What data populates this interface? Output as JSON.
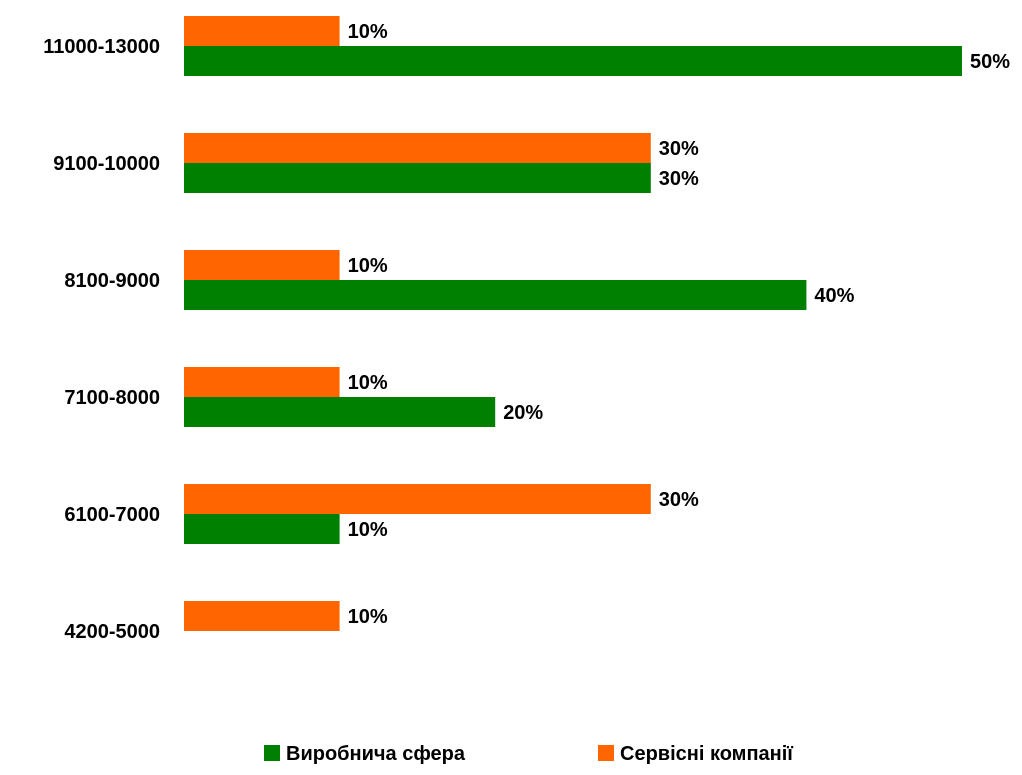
{
  "chart_data": {
    "type": "bar",
    "orientation": "horizontal",
    "categories": [
      "11000-13000",
      "9100-10000",
      "8100-9000",
      "7100-8000",
      "6100-7000",
      "4200-5000"
    ],
    "series": [
      {
        "name": "Сервісні компанії",
        "color": "#ff6600",
        "values": [
          10,
          30,
          10,
          10,
          30,
          10
        ],
        "labels": [
          "10%",
          "30%",
          "10%",
          "10%",
          "30%",
          "10%"
        ]
      },
      {
        "name": "Виробнича сфера",
        "color": "#008000",
        "values": [
          50,
          30,
          40,
          20,
          10,
          null
        ],
        "labels": [
          "50%",
          "30%",
          "40%",
          "20%",
          "10%",
          ""
        ]
      }
    ],
    "value_unit": "%",
    "xlim": [
      0,
      50
    ],
    "grid": false,
    "axes_visible": false,
    "legend": {
      "placement": "bottom",
      "order": [
        "Виробнича сфера",
        "Сервісні компанії"
      ]
    }
  }
}
